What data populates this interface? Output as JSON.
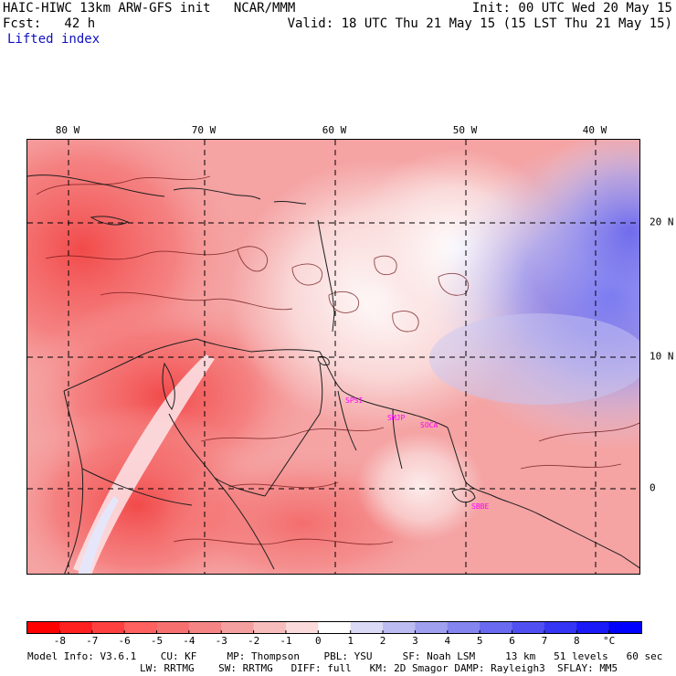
{
  "header": {
    "line1_left": "HAIC-HIWC 13km ARW-GFS init   NCAR/MMM",
    "line1_right": "Init: 00 UTC Wed 20 May 15",
    "line2_left": "Fcst:   42 h",
    "line2_right": "Valid: 18 UTC Thu 21 May 15 (15 LST Thu 21 May 15)",
    "field": "Lifted index"
  },
  "map": {
    "lon_labels": [
      "80 W",
      "70 W",
      "60 W",
      "50 W",
      "40 W"
    ],
    "lat_labels": [
      "20 N",
      "10 N",
      "0"
    ],
    "stations": [
      "SPSI",
      "SMJP",
      "SOCA",
      "SBBE"
    ]
  },
  "colorbar": {
    "colors": [
      "#ff0000",
      "#ff2020",
      "#ff4040",
      "#ff6060",
      "#f77070",
      "#f58585",
      "#f5a0a0",
      "#f7bcbc",
      "#fadada",
      "#ffffff",
      "#dadaf7",
      "#bcbcf2",
      "#a0a0f0",
      "#8585f0",
      "#6a6af0",
      "#5050f2",
      "#3535f5",
      "#1a1af8",
      "#0000ff"
    ],
    "labels": [
      "-8",
      "-7",
      "-6",
      "-5",
      "-4",
      "-3",
      "-2",
      "-1",
      "0",
      "1",
      "2",
      "3",
      "4",
      "5",
      "6",
      "7",
      "8",
      "°C"
    ]
  },
  "footer": {
    "line1": "Model Info: V3.6.1    CU: KF     MP: Thompson    PBL: YSU     SF: Noah LSM     13 km   51 levels   60 sec",
    "line2": "LW: RRTMG    SW: RRTMG   DIFF: full   KM: 2D Smagor DAMP: Rayleigh3  SFLAY: MM5"
  }
}
